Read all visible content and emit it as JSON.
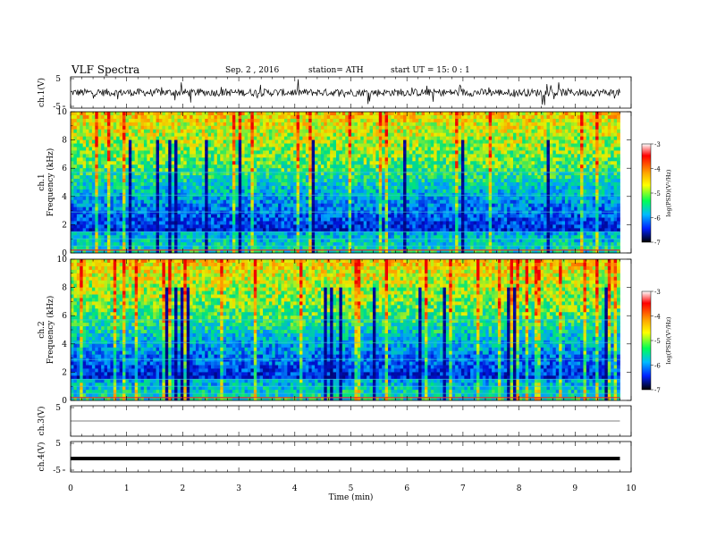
{
  "header": {
    "title": "VLF  Spectra",
    "date": "Sep. 2  , 2016",
    "station": "station= ATH",
    "start": "start  UT  =    15: 0  : 1"
  },
  "chart_data": [
    {
      "type": "line",
      "panel": "ch1-waveform",
      "ylabel": "ch.1(V)",
      "ylim": [
        -5,
        5
      ],
      "y_ticks": [
        -5,
        5
      ],
      "xlim": [
        0,
        10
      ],
      "trace_level": 0.0,
      "trace_amplitude": 1.2,
      "color": "#000000"
    },
    {
      "type": "heatmap",
      "panel": "ch1-spectrogram",
      "ylabel": [
        "ch.1",
        "Frequency  (kHz)"
      ],
      "ylim": [
        0,
        10
      ],
      "y_ticks": [
        0,
        2,
        4,
        6,
        8,
        10
      ],
      "xlim": [
        0,
        10
      ],
      "data_end_min": 9.8,
      "colorbar": {
        "label": "log(PSD)(V²/Hz)",
        "range": [
          -7,
          -3
        ],
        "ticks": [
          "-3",
          "-4",
          "-5",
          "-6",
          "-7"
        ]
      }
    },
    {
      "type": "heatmap",
      "panel": "ch2-spectrogram",
      "ylabel": [
        "ch.2",
        "Frequency  (kHz)"
      ],
      "ylim": [
        0,
        10
      ],
      "y_ticks": [
        0,
        2,
        4,
        6,
        8,
        10
      ],
      "xlim": [
        0,
        10
      ],
      "data_end_min": 9.8,
      "colorbar": {
        "label": "log(PSD)(V²/Hz)",
        "range": [
          -7,
          -3
        ],
        "ticks": [
          "-3",
          "-4",
          "-5",
          "-6",
          "-7"
        ]
      }
    },
    {
      "type": "line",
      "panel": "ch3-waveform",
      "ylabel": "ch.3(V)",
      "ylim": [
        -5,
        5
      ],
      "y_ticks": [
        5
      ],
      "xlim": [
        0,
        10
      ],
      "trace_level": 0.0,
      "trace_amplitude": 0.0,
      "color": "#555555"
    },
    {
      "type": "line",
      "panel": "ch4-waveform",
      "ylabel": "ch.4(V)",
      "ylim": [
        -5,
        5
      ],
      "y_ticks": [
        -5,
        5
      ],
      "xlim": [
        0,
        10
      ],
      "trace_level": 0.0,
      "trace_amplitude": 0.1,
      "color": "#000000"
    }
  ],
  "x_axis": {
    "label": "Time  (min)",
    "ticks": [
      "0",
      "1",
      "2",
      "3",
      "4",
      "5",
      "6",
      "7",
      "8",
      "9",
      "10"
    ],
    "range": [
      0,
      10
    ]
  },
  "colors": {
    "psd_high": "#ff0000",
    "psd_mid_high": "#ffff00",
    "psd_mid": "#00ff66",
    "psd_mid_low": "#00aaff",
    "psd_low": "#000066"
  }
}
